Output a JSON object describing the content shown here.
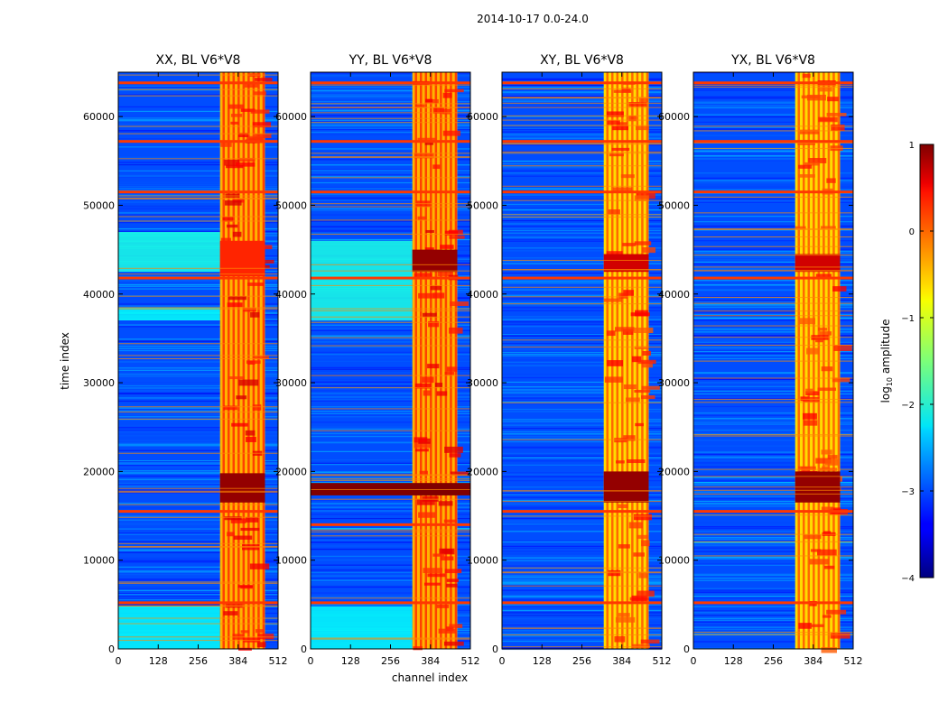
{
  "chart_data": {
    "type": "heatmap",
    "suptitle": "2014-10-17 0.0-24.0",
    "xlabel": "channel index",
    "ylabel": "time index",
    "xlim": [
      0,
      512
    ],
    "ylim": [
      0,
      65000
    ],
    "xticks": [
      0,
      128,
      256,
      384,
      512
    ],
    "xtick_labels": [
      "0",
      "128",
      "256",
      "384",
      "512"
    ],
    "yticks": [
      0,
      10000,
      20000,
      30000,
      40000,
      50000,
      60000
    ],
    "ytick_labels": [
      "0",
      "10000",
      "20000",
      "30000",
      "40000",
      "50000",
      "60000"
    ],
    "colorbar": {
      "label_prefix": "log",
      "label_sub": "10",
      "label_suffix": " amplitude",
      "range": [
        -4,
        1
      ],
      "ticks": [
        1,
        0,
        -1,
        -2,
        -3,
        -4
      ],
      "tick_labels": [
        "1",
        "0",
        "−1",
        "−2",
        "−3",
        "−4"
      ],
      "colormap": "jet"
    },
    "panels": [
      {
        "title": "XX, BL V6*V8",
        "background_log10": -3.0,
        "band_channels": [
          326,
          470
        ],
        "band_log10": -0.5,
        "flagged_rows": [
          5200,
          15500,
          41800,
          51500,
          57200,
          63800
        ],
        "bright_regions": [
          {
            "t0": 16500,
            "t1": 19800,
            "c0": 326,
            "c1": 470,
            "log10": 0.9
          },
          {
            "t0": 42000,
            "t1": 46000,
            "c0": 326,
            "c1": 470,
            "log10": 0.2
          }
        ],
        "elevated_regions": [
          {
            "t0": 0,
            "t1": 4800,
            "c0": 0,
            "c1": 326,
            "log10": -2.1
          },
          {
            "t0": 37000,
            "t1": 38500,
            "c0": 0,
            "c1": 326,
            "log10": -2.1
          },
          {
            "t0": 42500,
            "t1": 47000,
            "c0": 0,
            "c1": 326,
            "log10": -2.0
          }
        ]
      },
      {
        "title": "YY, BL V6*V8",
        "background_log10": -3.0,
        "band_channels": [
          326,
          470
        ],
        "band_log10": -0.5,
        "flagged_rows": [
          5200,
          14000,
          41800,
          51500,
          57200,
          63800
        ],
        "bright_regions": [
          {
            "t0": 17300,
            "t1": 18700,
            "c0": 0,
            "c1": 512,
            "log10": 1.0
          },
          {
            "t0": 42500,
            "t1": 45000,
            "c0": 326,
            "c1": 470,
            "log10": 0.9
          }
        ],
        "elevated_regions": [
          {
            "t0": 0,
            "t1": 4800,
            "c0": 0,
            "c1": 326,
            "log10": -2.1
          },
          {
            "t0": 37000,
            "t1": 46000,
            "c0": 0,
            "c1": 326,
            "log10": -2.0
          }
        ]
      },
      {
        "title": "XY, BL V6*V8",
        "background_log10": -3.0,
        "band_channels": [
          326,
          470
        ],
        "band_log10": -0.7,
        "flagged_rows": [
          5200,
          15500,
          41800,
          51500,
          57200,
          63800
        ],
        "bright_regions": [
          {
            "t0": 16500,
            "t1": 20000,
            "c0": 326,
            "c1": 470,
            "log10": 0.9
          },
          {
            "t0": 42500,
            "t1": 44500,
            "c0": 326,
            "c1": 470,
            "log10": 0.6
          }
        ],
        "elevated_regions": []
      },
      {
        "title": "YX, BL V6*V8",
        "background_log10": -3.0,
        "band_channels": [
          326,
          470
        ],
        "band_log10": -0.7,
        "flagged_rows": [
          5200,
          15500,
          41800,
          51500,
          57200,
          63800
        ],
        "bright_regions": [
          {
            "t0": 16500,
            "t1": 20000,
            "c0": 326,
            "c1": 470,
            "log10": 0.9
          },
          {
            "t0": 42500,
            "t1": 44500,
            "c0": 326,
            "c1": 470,
            "log10": 0.6
          }
        ],
        "elevated_regions": []
      }
    ]
  }
}
